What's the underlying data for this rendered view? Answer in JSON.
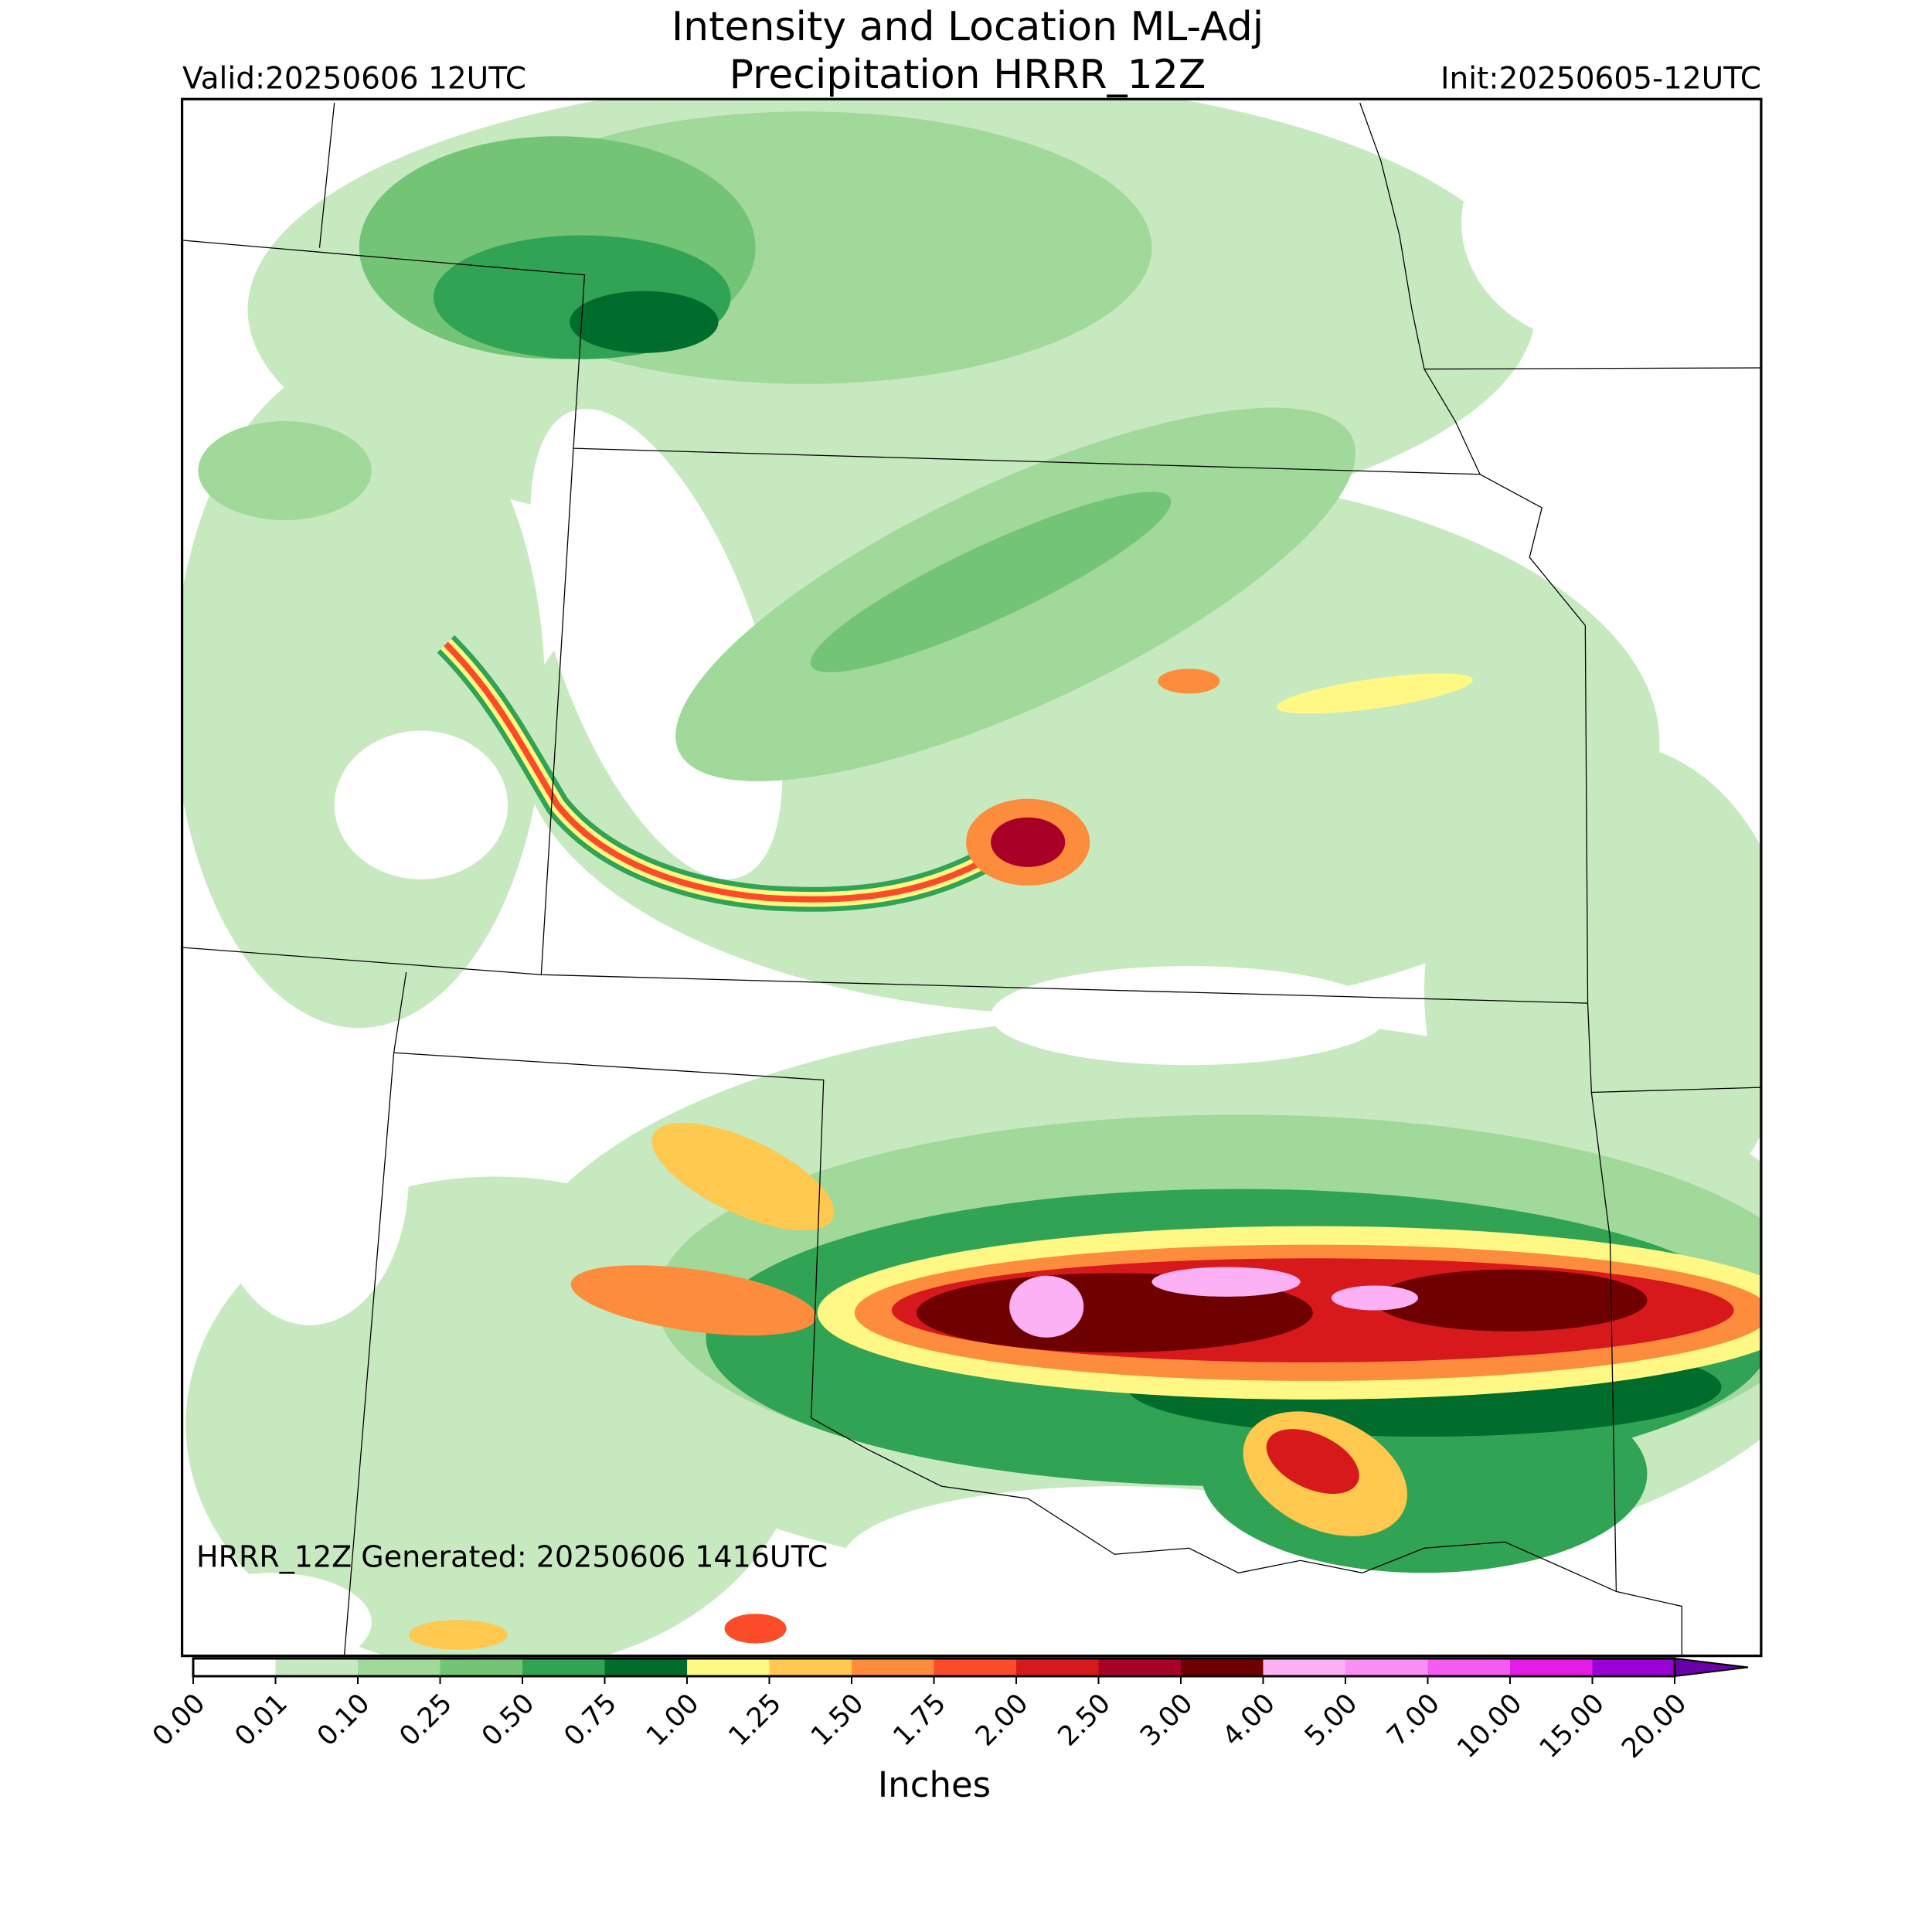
{
  "map": {
    "title_line1": "Intensity and Location ML-Adj",
    "title_line2": "Precipitation HRRR_12Z",
    "valid": "Valid:20250606 12UTC",
    "init": "Init:20250605-12UTC",
    "generated": "HRRR_12Z Generated: 20250606 1416UTC"
  },
  "colorbar": {
    "label": "Inches",
    "levels": [
      {
        "value": 0,
        "label": "0.00",
        "color": "#ffffff"
      },
      {
        "value": 0.01,
        "label": "0.01",
        "color": "#c7e9c0"
      },
      {
        "value": 0.1,
        "label": "0.10",
        "color": "#a1d99b"
      },
      {
        "value": 0.25,
        "label": "0.25",
        "color": "#74c476"
      },
      {
        "value": 0.5,
        "label": "0.50",
        "color": "#31a354"
      },
      {
        "value": 0.75,
        "label": "0.75",
        "color": "#006d2c"
      },
      {
        "value": 1,
        "label": "1.00",
        "color": "#fff885"
      },
      {
        "value": 1.25,
        "label": "1.25",
        "color": "#ffc84e"
      },
      {
        "value": 1.5,
        "label": "1.50",
        "color": "#fd8c3c"
      },
      {
        "value": 1.75,
        "label": "1.75",
        "color": "#fb4b29"
      },
      {
        "value": 2,
        "label": "2.00",
        "color": "#d7191c"
      },
      {
        "value": 2.5,
        "label": "2.50",
        "color": "#a80026"
      },
      {
        "value": 3,
        "label": "3.00",
        "color": "#6e0000"
      },
      {
        "value": 4,
        "label": "4.00",
        "color": "#fbb1f4"
      },
      {
        "value": 5,
        "label": "5.00",
        "color": "#f98ef4"
      },
      {
        "value": 7,
        "label": "7.00",
        "color": "#f55af1"
      },
      {
        "value": 10,
        "label": "10.00",
        "color": "#e51ce8"
      },
      {
        "value": 15,
        "label": "15.00",
        "color": "#9b00d6"
      },
      {
        "value": 20,
        "label": "20.00",
        "color": "#6a00a8"
      }
    ]
  }
}
